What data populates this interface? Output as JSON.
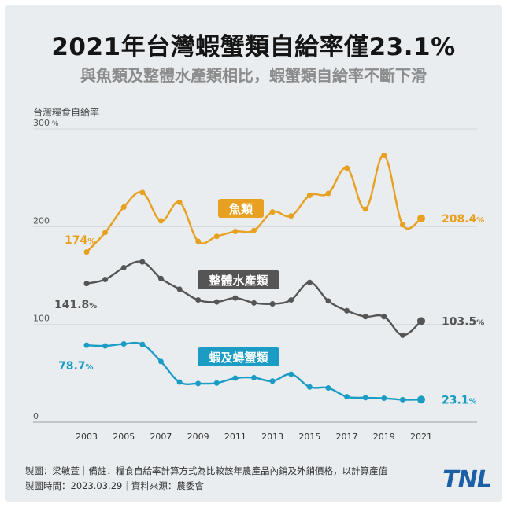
{
  "header": {
    "title": "2021年台灣蝦蟹類自給率僅23.1%",
    "subtitle": "與魚類及整體水產類相比，蝦蟹類自給率不斷下滑"
  },
  "chart_data": {
    "type": "line",
    "ylabel": "台灣糧食自給率",
    "ylim": [
      0,
      300
    ],
    "y_ticks": [
      "0",
      "100",
      "200",
      "300"
    ],
    "y_tick_unit": "%",
    "grid": true,
    "x": [
      2003,
      2004,
      2005,
      2006,
      2007,
      2008,
      2009,
      2010,
      2011,
      2012,
      2013,
      2014,
      2015,
      2016,
      2017,
      2018,
      2019,
      2020,
      2021
    ],
    "x_ticks": [
      "2003",
      "2005",
      "2007",
      "2009",
      "2011",
      "2013",
      "2015",
      "2017",
      "2019",
      "2021"
    ],
    "series": [
      {
        "name": "魚類",
        "color": "#e8a020",
        "values": [
          174,
          194,
          220,
          235,
          206,
          225,
          185,
          190,
          195,
          196,
          215,
          211,
          232,
          234,
          260,
          218,
          273,
          202,
          208.4
        ],
        "start_label": "174",
        "end_label": "208.4"
      },
      {
        "name": "整體水產類",
        "color": "#555555",
        "values": [
          141.8,
          146,
          158,
          164,
          147,
          136,
          125,
          123,
          127,
          122,
          121,
          125,
          143,
          124,
          114,
          108,
          108,
          89,
          103.5
        ],
        "start_label": "141.8",
        "end_label": "103.5"
      },
      {
        "name": "蝦及蟳蟹類",
        "color": "#1b9cc4",
        "values": [
          78.7,
          78,
          80,
          79.5,
          62,
          41,
          39.5,
          40,
          45,
          45.5,
          42,
          49,
          36,
          35,
          26,
          25,
          24.5,
          23,
          23.1
        ],
        "start_label": "78.7",
        "end_label": "23.1"
      }
    ]
  },
  "footer": {
    "line1": "製圖：梁敏萱｜備註：糧食自給率計算方式為比較該年農產品內銷及外銷價格，以計算產值",
    "line2": "製圖時間：2023.03.29｜資料來源：農委會"
  },
  "logo": {
    "text": "TNL",
    "color": "#1b5fa6"
  }
}
